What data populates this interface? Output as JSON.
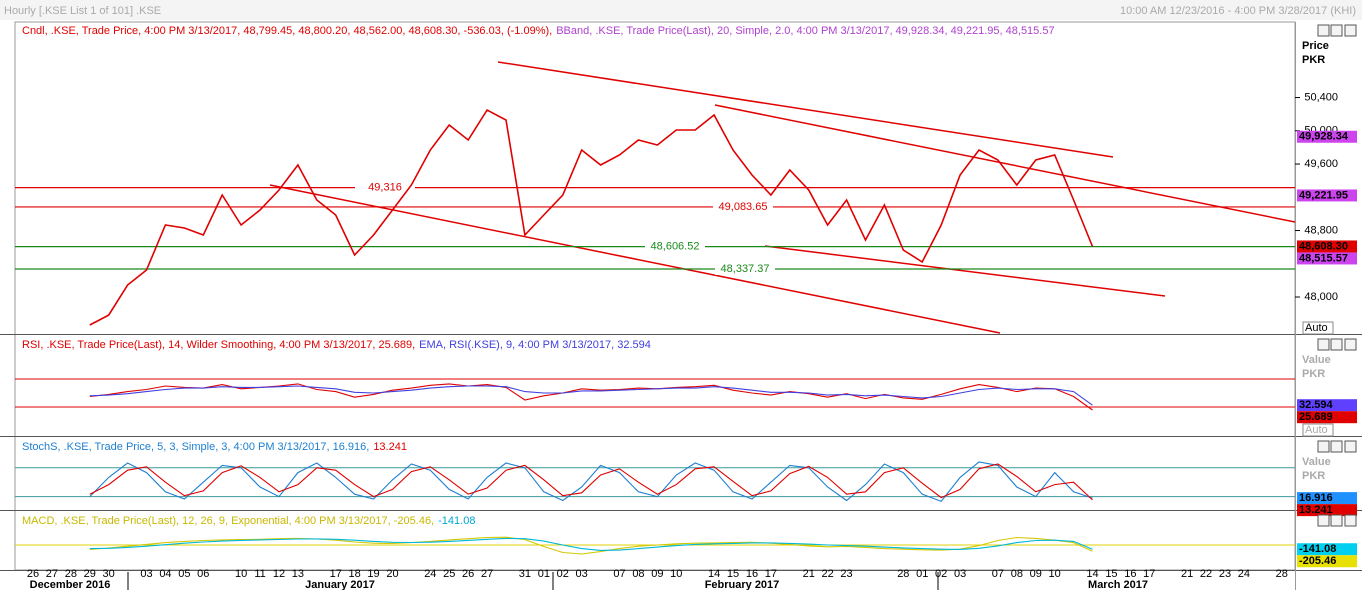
{
  "window": {
    "title": "Hourly [.KSE List 1 of 101] .KSE",
    "range": "10:00 AM 12/23/2016 - 4:00 PM 3/28/2017 (KHI)"
  },
  "chart_data": [
    {
      "type": "line",
      "legend": [
        {
          "text": "Cndl, .KSE, Trade Price, 4:00 PM 3/13/2017, 48,799.45, 48,800.20, 48,562.00, 48,608.30, -536.03, (-1.09%),",
          "color": "#e00000"
        },
        {
          "text": "BBand, .KSE, Trade Price(Last), 20, Simple, 2.0, 4:00 PM 3/13/2017, 49,928.34, 49,221.95, 48,515.57",
          "color": "#b040d0"
        }
      ],
      "y_label": [
        "Price",
        "PKR"
      ],
      "auto": "Auto",
      "categories": [
        "26",
        "27",
        "28",
        "29",
        "30",
        null,
        "03",
        "04",
        "05",
        "06",
        null,
        "10",
        "11",
        "12",
        "13",
        null,
        "17",
        "18",
        "19",
        "20",
        null,
        "24",
        "25",
        "26",
        "27",
        null,
        "31",
        "01",
        "02",
        "03",
        null,
        "07",
        "08",
        "09",
        "10",
        null,
        "14",
        "15",
        "16",
        "17",
        null,
        "21",
        "22",
        "23",
        null,
        null,
        "28",
        "01",
        "02",
        "03",
        null,
        "07",
        "08",
        "09",
        "10",
        null,
        "14",
        "15",
        "16",
        "17",
        null,
        "21",
        "22",
        "23",
        "24",
        null,
        "28"
      ],
      "months": [
        "December 2016",
        "January 2017",
        "February 2017",
        "March 2017"
      ],
      "ylim": [
        47555,
        51309
      ],
      "yticks": [
        {
          "value": 48000,
          "label": "48,000"
        },
        {
          "value": 48800,
          "label": "48,800"
        },
        {
          "value": 49600,
          "label": "49,600"
        },
        {
          "value": 50000,
          "label": "50,000"
        },
        {
          "value": 50400,
          "label": "50,400"
        }
      ],
      "series": [
        {
          "name": "Cndl",
          "color": "#e00000",
          "values": [
            null,
            null,
            null,
            47663,
            47783,
            48144,
            48325,
            48866,
            48830,
            48746,
            49227,
            48866,
            49047,
            49288,
            49588,
            49167,
            48987,
            48505,
            48746,
            49047,
            49348,
            49769,
            50070,
            49889,
            50250,
            50130,
            48746,
            48987,
            49227,
            49769,
            49588,
            49709,
            49889,
            49829,
            50010,
            50010,
            50190,
            49769,
            49468,
            49227,
            49528,
            49288,
            48866,
            49167,
            48686,
            49107,
            48566,
            48421,
            48866,
            49468,
            49769,
            49649,
            49348,
            49649,
            49709,
            49167,
            48608.3,
            null,
            null,
            null,
            null,
            null,
            null,
            null,
            null,
            null,
            null
          ]
        }
      ],
      "levels": [
        {
          "value": 49316,
          "label": "49,316",
          "color": "#e00000"
        },
        {
          "value": 49083.65,
          "label": "49,083.65",
          "color": "#e00000"
        },
        {
          "value": 48606.52,
          "label": "48,606.52",
          "color": "#1a8a1a"
        },
        {
          "value": 48337.37,
          "label": "48,337.37",
          "color": "#1a8a1a"
        }
      ],
      "tags": [
        {
          "value": 49928.34,
          "label": "49,928.34",
          "bg": "#cc44ee",
          "fg": "#000"
        },
        {
          "value": 49221.95,
          "label": "49,221.95",
          "bg": "#cc44ee",
          "fg": "#000"
        },
        {
          "value": 48608.3,
          "label": "48,608.30",
          "bg": "#e00000",
          "fg": "#000"
        },
        {
          "value": 48515.57,
          "label": "48,515.57",
          "bg": "#cc44ee",
          "fg": "#000"
        }
      ]
    },
    {
      "type": "line",
      "legend": [
        {
          "text": "RSI, .KSE, Trade Price(Last), 14, Wilder Smoothing, 4:00 PM 3/13/2017, 25.689,",
          "color": "#e00000"
        },
        {
          "text": "EMA, RSI(.KSE), 9, 4:00 PM 3/13/2017, 32.594",
          "color": "#4040e0"
        }
      ],
      "y_label": [
        "Value",
        "PKR"
      ],
      "auto": "Auto",
      "ylim": [
        -11.4,
        131.4
      ],
      "levels": [
        {
          "value": 70,
          "color": "#e00000"
        },
        {
          "value": 30,
          "color": "#e00000"
        }
      ],
      "series": [
        {
          "name": "RSI",
          "color": "#e00000",
          "values": [
            null,
            null,
            null,
            45,
            48,
            52,
            55,
            60,
            58,
            57,
            62,
            56,
            58,
            60,
            63,
            55,
            52,
            44,
            48,
            54,
            57,
            61,
            63,
            60,
            62,
            58,
            40,
            46,
            50,
            56,
            54,
            55,
            57,
            56,
            58,
            59,
            61,
            54,
            50,
            47,
            52,
            49,
            44,
            49,
            42,
            48,
            43,
            41,
            48,
            56,
            62,
            58,
            52,
            57,
            56,
            45,
            25.689,
            null,
            null,
            null,
            null,
            null,
            null,
            null,
            null,
            null,
            null
          ]
        },
        {
          "name": "EMA",
          "color": "#4040e0",
          "values": [
            null,
            null,
            null,
            46,
            47,
            49,
            52,
            55,
            57,
            57,
            59,
            58,
            58,
            59,
            60,
            58,
            56,
            51,
            50,
            52,
            54,
            57,
            59,
            60,
            60,
            59,
            52,
            50,
            50,
            53,
            53,
            54,
            55,
            56,
            57,
            57,
            59,
            57,
            54,
            51,
            51,
            50,
            47,
            48,
            46,
            47,
            45,
            43,
            45,
            50,
            55,
            57,
            55,
            56,
            56,
            52,
            32.594,
            null,
            null,
            null,
            null,
            null,
            null,
            null,
            null,
            null,
            null
          ]
        }
      ],
      "tags": [
        {
          "value": 32.594,
          "label": "32.594",
          "bg": "#6040ff",
          "fg": "#000"
        },
        {
          "value": 25.689,
          "label": "25.689",
          "bg": "#e00000",
          "fg": "#000"
        }
      ]
    },
    {
      "type": "line",
      "legend": [
        {
          "text": "StochS, .KSE, Trade Price, 5, 3, Simple, 3, 4:00 PM 3/13/2017, 16.916,",
          "color": "#1e7fd0"
        },
        {
          "text": "13.241",
          "color": "#e00000"
        }
      ],
      "y_label": [
        "Value",
        "PKR"
      ],
      "ylim": [
        -7.8,
        142
      ],
      "levels": [
        {
          "value": 80,
          "color": "#3a9a9a"
        },
        {
          "value": 20,
          "color": "#3a9a9a"
        }
      ],
      "series": [
        {
          "name": "%K",
          "color": "#1e7fd0",
          "values": [
            null,
            null,
            null,
            20,
            60,
            90,
            70,
            30,
            15,
            50,
            85,
            80,
            40,
            20,
            70,
            90,
            60,
            25,
            15,
            55,
            88,
            75,
            35,
            15,
            60,
            90,
            80,
            30,
            12,
            40,
            85,
            70,
            30,
            20,
            65,
            90,
            75,
            30,
            15,
            50,
            85,
            80,
            40,
            12,
            45,
            88,
            70,
            25,
            10,
            60,
            92,
            85,
            40,
            20,
            70,
            30,
            16.916,
            null,
            null,
            null,
            null,
            null,
            null,
            null,
            null,
            null,
            null
          ]
        },
        {
          "name": "%D",
          "color": "#e00000",
          "values": [
            null,
            null,
            null,
            25,
            45,
            75,
            82,
            50,
            22,
            32,
            70,
            84,
            60,
            30,
            45,
            80,
            75,
            45,
            20,
            35,
            72,
            82,
            55,
            25,
            38,
            75,
            85,
            55,
            22,
            28,
            65,
            78,
            50,
            25,
            45,
            78,
            82,
            52,
            22,
            32,
            68,
            83,
            60,
            25,
            30,
            70,
            80,
            48,
            18,
            35,
            78,
            88,
            62,
            30,
            45,
            50,
            13.241,
            null,
            null,
            null,
            null,
            null,
            null,
            null,
            null,
            null,
            null
          ]
        }
      ],
      "tags": [
        {
          "value": 16.916,
          "label": "16.916",
          "bg": "#1e90ff",
          "fg": "#000"
        },
        {
          "value": 13.241,
          "label": "13.241",
          "bg": "#e00000",
          "fg": "#000"
        }
      ]
    },
    {
      "type": "line",
      "legend": [
        {
          "text": "MACD, .KSE, Trade Price(Last), 12, 26, 9, Exponential, 4:00 PM 3/13/2017, -205.46,",
          "color": "#c8b800"
        },
        {
          "text": "-141.08",
          "color": "#00a8d0"
        }
      ],
      "ylim": [
        -833,
        1100
      ],
      "levels": [
        {
          "value": 0,
          "color": "#e0d000"
        }
      ],
      "series": [
        {
          "name": "MACD",
          "color": "#d4c800",
          "values": [
            null,
            null,
            null,
            -150,
            -100,
            -40,
            20,
            80,
            120,
            150,
            170,
            180,
            190,
            210,
            220,
            200,
            160,
            100,
            60,
            50,
            80,
            120,
            170,
            210,
            250,
            260,
            180,
            -50,
            -250,
            -300,
            -220,
            -120,
            -40,
            0,
            40,
            60,
            70,
            80,
            90,
            60,
            20,
            -30,
            -60,
            -50,
            -80,
            -120,
            -140,
            -160,
            -170,
            -140,
            -20,
            150,
            250,
            220,
            160,
            80,
            -205.46,
            null,
            null,
            null,
            null,
            null,
            null,
            null,
            null,
            null,
            null
          ]
        },
        {
          "name": "Signal",
          "color": "#00b8d8",
          "values": [
            null,
            null,
            null,
            -120,
            -110,
            -80,
            -40,
            10,
            60,
            100,
            130,
            155,
            170,
            185,
            200,
            205,
            190,
            160,
            120,
            90,
            85,
            95,
            120,
            155,
            190,
            220,
            210,
            130,
            0,
            -120,
            -180,
            -170,
            -120,
            -70,
            -20,
            20,
            40,
            55,
            70,
            70,
            55,
            30,
            0,
            -20,
            -40,
            -70,
            -95,
            -120,
            -140,
            -145,
            -110,
            -30,
            80,
            150,
            160,
            120,
            -141.08,
            null,
            null,
            null,
            null,
            null,
            null,
            null,
            null,
            null,
            null
          ]
        }
      ],
      "tags": [
        {
          "value": -141.08,
          "label": "-141.08",
          "bg": "#00d0f0",
          "fg": "#000"
        },
        {
          "value": -205.46,
          "label": "-205.46",
          "bg": "#e8e000",
          "fg": "#000"
        }
      ]
    }
  ]
}
